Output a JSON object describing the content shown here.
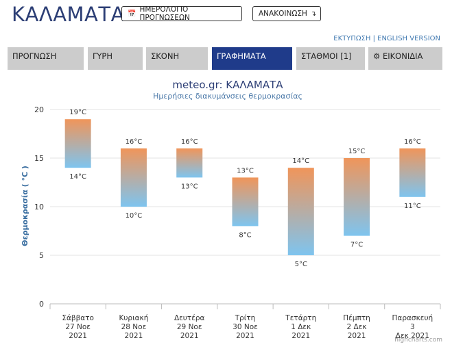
{
  "header": {
    "city": "ΚΑΛΑΜΑΤΑ",
    "forecast_calendar_label": "ΗΜΕΡΟΛΟΓΙΟ ΠΡΟΓΝΩΣΕΩΝ",
    "forecast_calendar_icon": "calendar-icon",
    "announcement_label": "ΑΝΑΚΟΙΝΩΣΗ",
    "announcement_icon": "arrow-down-icon",
    "print_link": "ΕΚΤΥΠΩΣΗ",
    "separator": "|",
    "english_link": "ENGLISH VERSION"
  },
  "tabs": [
    {
      "label": "ΠΡΟΓΝΩΣΗ",
      "active": false
    },
    {
      "label": "ΓΥΡΗ",
      "active": false
    },
    {
      "label": "ΣΚΟΝΗ",
      "active": false
    },
    {
      "label": "ΓΡΑΦΗΜΑΤΑ",
      "active": true
    },
    {
      "label": "ΣΤΑΘΜΟΙ [1]",
      "active": false
    },
    {
      "label": "ΕΙΚΟΝΙΔΙΑ",
      "active": false,
      "icon": "gear-icon"
    }
  ],
  "chart_data": {
    "type": "bar",
    "subtype": "floating-range",
    "title": "meteo.gr: ΚΑΛΑΜΑΤΑ",
    "subtitle": "Ημερήσιες διακυμάνσεις θερμοκρασίας",
    "ylabel": "Θερμοκρασία ( °C )",
    "ylim": [
      0,
      20
    ],
    "yticks": [
      0,
      5,
      10,
      15,
      20
    ],
    "grid": true,
    "unit": "°C",
    "colors": {
      "high": "#f0955a",
      "low": "#7ec4ef"
    },
    "categories": [
      [
        "Σάββατο",
        "27 Νοε",
        "2021"
      ],
      [
        "Κυριακή",
        "28 Νοε",
        "2021"
      ],
      [
        "Δευτέρα",
        "29 Νοε",
        "2021"
      ],
      [
        "Τρίτη",
        "30 Νοε",
        "2021"
      ],
      [
        "Τετάρτη",
        "1 Δεκ",
        "2021"
      ],
      [
        "Πέμπτη",
        "2 Δεκ",
        "2021"
      ],
      [
        "Παρασκευή",
        "3",
        "Δεκ 2021"
      ]
    ],
    "min": [
      14,
      10,
      13,
      8,
      5,
      7,
      11
    ],
    "max": [
      19,
      16,
      16,
      13,
      14,
      15,
      16
    ]
  },
  "credit": "highcharts.com"
}
